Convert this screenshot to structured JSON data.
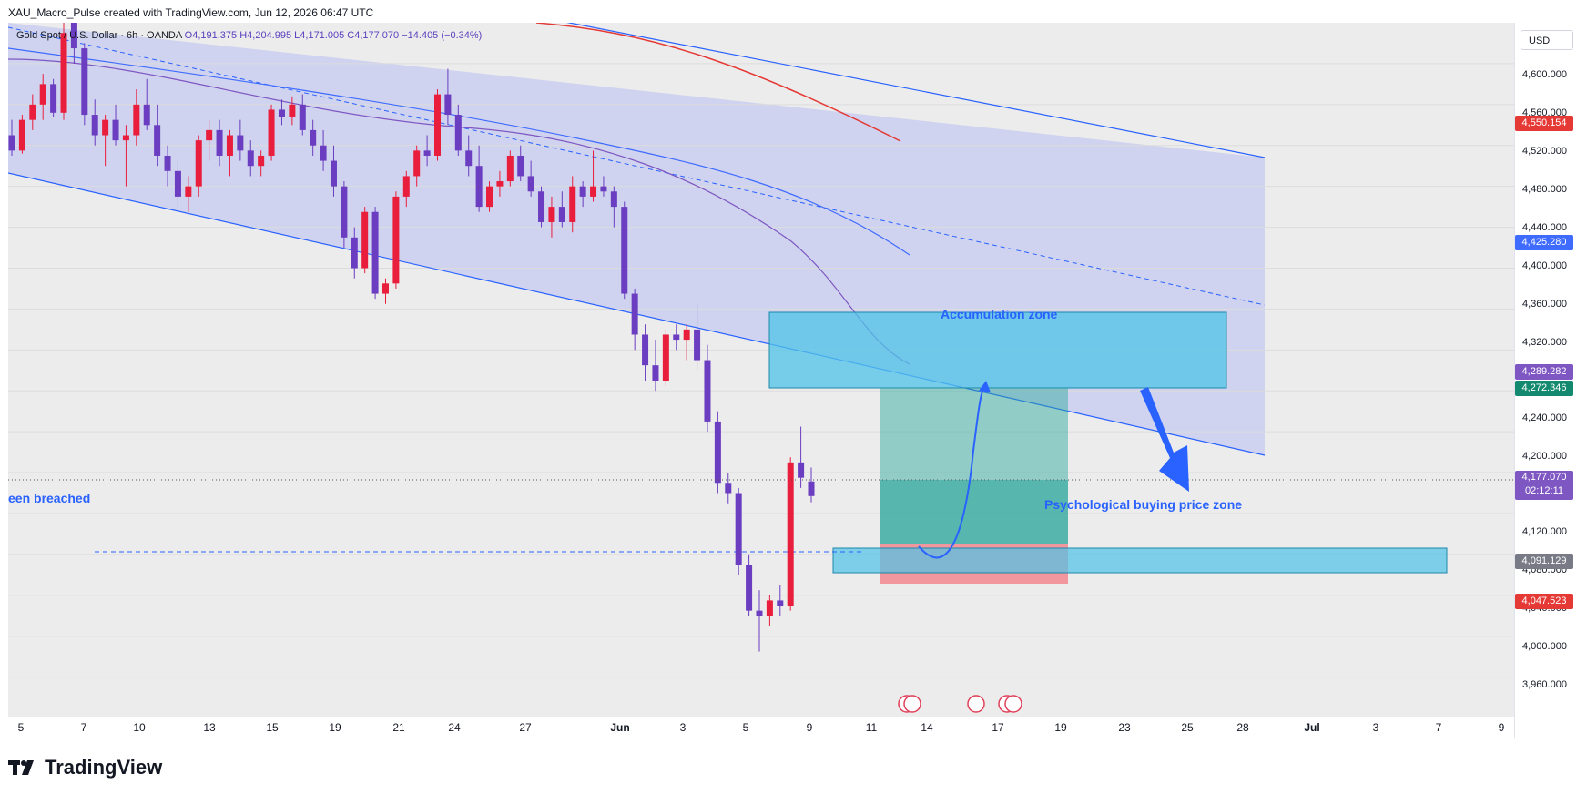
{
  "header": {
    "text": "XAU_Macro_Pulse created with TradingView.com, Jun 12, 2026 06:47 UTC"
  },
  "legend": {
    "symbol": "Gold Spot / U.S. Dollar · 6h · OANDA",
    "open": "O4,191.375",
    "high": "H4,204.995",
    "low": "L4,171.005",
    "close": "C4,177.070",
    "change": "−14.405 (−0.34%)"
  },
  "axis": {
    "currency": "USD",
    "price_ticks": [
      "4,600.000",
      "4,560.000",
      "4,520.000",
      "4,480.000",
      "4,440.000",
      "4,400.000",
      "4,360.000",
      "4,320.000",
      "4,240.000",
      "4,200.000",
      "4,120.000",
      "4,080.000",
      "4,040.000",
      "4,000.000",
      "3,960.000"
    ],
    "time_ticks": [
      "5",
      "7",
      "10",
      "13",
      "15",
      "19",
      "21",
      "24",
      "27",
      "Jun",
      "3",
      "5",
      "9",
      "11",
      "14",
      "17",
      "19",
      "23",
      "25",
      "28",
      "Jul",
      "3",
      "7",
      "9"
    ]
  },
  "badges": {
    "ma_red": "4,550.154",
    "ma_blue": "4,425.280",
    "ma_purple": "4,289.282",
    "zone_top": "4,272.346",
    "last_price": "4,177.070",
    "countdown": "02:12:11",
    "zone_mid": "4,091.129",
    "stop": "4,047.523"
  },
  "annotations": {
    "accumulation": "Accumulation zone",
    "psychological": "Psychological buying price zone",
    "breached": "een breached"
  },
  "logo": {
    "text": "TradingView",
    "icon": "tradingview-logo-icon"
  },
  "colors": {
    "bull": "#e91e3c",
    "bear": "#6a3dc1",
    "channel": "#2962ff",
    "channel_fill": "#c5cbf0",
    "zone": "#4fc3e8",
    "target": "#26a69a",
    "stop": "#f7525f",
    "ma_red": "#e53935",
    "ma_blue": "#3f6bff",
    "ma_purple": "#7e57c2"
  },
  "chart_data": {
    "type": "candlestick",
    "symbol": "XAUUSD",
    "timeframe": "6h",
    "ylim": [
      3940,
      4640
    ],
    "candles": [
      {
        "o": 4530,
        "h": 4545,
        "l": 4510,
        "c": 4515
      },
      {
        "o": 4515,
        "h": 4550,
        "l": 4512,
        "c": 4545
      },
      {
        "o": 4545,
        "h": 4570,
        "l": 4535,
        "c": 4560
      },
      {
        "o": 4560,
        "h": 4590,
        "l": 4545,
        "c": 4580
      },
      {
        "o": 4580,
        "h": 4585,
        "l": 4548,
        "c": 4552
      },
      {
        "o": 4552,
        "h": 4640,
        "l": 4545,
        "c": 4630
      },
      {
        "o": 4640,
        "h": 4660,
        "l": 4600,
        "c": 4615
      },
      {
        "o": 4615,
        "h": 4620,
        "l": 4540,
        "c": 4550
      },
      {
        "o": 4550,
        "h": 4565,
        "l": 4520,
        "c": 4530
      },
      {
        "o": 4530,
        "h": 4550,
        "l": 4500,
        "c": 4545
      },
      {
        "o": 4545,
        "h": 4560,
        "l": 4520,
        "c": 4525
      },
      {
        "o": 4525,
        "h": 4540,
        "l": 4480,
        "c": 4530
      },
      {
        "o": 4530,
        "h": 4575,
        "l": 4520,
        "c": 4560
      },
      {
        "o": 4560,
        "h": 4585,
        "l": 4535,
        "c": 4540
      },
      {
        "o": 4540,
        "h": 4560,
        "l": 4500,
        "c": 4510
      },
      {
        "o": 4510,
        "h": 4520,
        "l": 4480,
        "c": 4495
      },
      {
        "o": 4495,
        "h": 4505,
        "l": 4460,
        "c": 4470
      },
      {
        "o": 4470,
        "h": 4490,
        "l": 4455,
        "c": 4480
      },
      {
        "o": 4480,
        "h": 4530,
        "l": 4470,
        "c": 4525
      },
      {
        "o": 4525,
        "h": 4545,
        "l": 4505,
        "c": 4535
      },
      {
        "o": 4535,
        "h": 4545,
        "l": 4500,
        "c": 4510
      },
      {
        "o": 4510,
        "h": 4535,
        "l": 4490,
        "c": 4530
      },
      {
        "o": 4530,
        "h": 4545,
        "l": 4505,
        "c": 4515
      },
      {
        "o": 4515,
        "h": 4525,
        "l": 4490,
        "c": 4500
      },
      {
        "o": 4500,
        "h": 4515,
        "l": 4490,
        "c": 4510
      },
      {
        "o": 4510,
        "h": 4560,
        "l": 4505,
        "c": 4555
      },
      {
        "o": 4555,
        "h": 4565,
        "l": 4540,
        "c": 4548
      },
      {
        "o": 4548,
        "h": 4568,
        "l": 4540,
        "c": 4560
      },
      {
        "o": 4560,
        "h": 4570,
        "l": 4530,
        "c": 4535
      },
      {
        "o": 4535,
        "h": 4545,
        "l": 4510,
        "c": 4520
      },
      {
        "o": 4520,
        "h": 4535,
        "l": 4495,
        "c": 4505
      },
      {
        "o": 4505,
        "h": 4520,
        "l": 4470,
        "c": 4480
      },
      {
        "o": 4480,
        "h": 4485,
        "l": 4420,
        "c": 4430
      },
      {
        "o": 4430,
        "h": 4440,
        "l": 4390,
        "c": 4400
      },
      {
        "o": 4400,
        "h": 4460,
        "l": 4395,
        "c": 4455
      },
      {
        "o": 4455,
        "h": 4460,
        "l": 4370,
        "c": 4375
      },
      {
        "o": 4375,
        "h": 4390,
        "l": 4365,
        "c": 4385
      },
      {
        "o": 4385,
        "h": 4475,
        "l": 4380,
        "c": 4470
      },
      {
        "o": 4470,
        "h": 4495,
        "l": 4460,
        "c": 4490
      },
      {
        "o": 4490,
        "h": 4520,
        "l": 4480,
        "c": 4515
      },
      {
        "o": 4515,
        "h": 4530,
        "l": 4500,
        "c": 4510
      },
      {
        "o": 4510,
        "h": 4575,
        "l": 4505,
        "c": 4570
      },
      {
        "o": 4570,
        "h": 4595,
        "l": 4540,
        "c": 4550
      },
      {
        "o": 4550,
        "h": 4560,
        "l": 4510,
        "c": 4515
      },
      {
        "o": 4515,
        "h": 4530,
        "l": 4490,
        "c": 4500
      },
      {
        "o": 4500,
        "h": 4520,
        "l": 4455,
        "c": 4460
      },
      {
        "o": 4460,
        "h": 4485,
        "l": 4455,
        "c": 4480
      },
      {
        "o": 4480,
        "h": 4495,
        "l": 4470,
        "c": 4485
      },
      {
        "o": 4485,
        "h": 4515,
        "l": 4480,
        "c": 4510
      },
      {
        "o": 4510,
        "h": 4520,
        "l": 4485,
        "c": 4490
      },
      {
        "o": 4490,
        "h": 4505,
        "l": 4470,
        "c": 4475
      },
      {
        "o": 4475,
        "h": 4480,
        "l": 4440,
        "c": 4445
      },
      {
        "o": 4445,
        "h": 4470,
        "l": 4430,
        "c": 4460
      },
      {
        "o": 4460,
        "h": 4475,
        "l": 4440,
        "c": 4445
      },
      {
        "o": 4445,
        "h": 4490,
        "l": 4435,
        "c": 4480
      },
      {
        "o": 4480,
        "h": 4485,
        "l": 4460,
        "c": 4470
      },
      {
        "o": 4470,
        "h": 4515,
        "l": 4465,
        "c": 4480
      },
      {
        "o": 4480,
        "h": 4490,
        "l": 4470,
        "c": 4475
      },
      {
        "o": 4475,
        "h": 4480,
        "l": 4440,
        "c": 4460
      },
      {
        "o": 4460,
        "h": 4465,
        "l": 4370,
        "c": 4375
      },
      {
        "o": 4375,
        "h": 4380,
        "l": 4320,
        "c": 4335
      },
      {
        "o": 4335,
        "h": 4345,
        "l": 4290,
        "c": 4305
      },
      {
        "o": 4305,
        "h": 4330,
        "l": 4280,
        "c": 4290
      },
      {
        "o": 4290,
        "h": 4340,
        "l": 4285,
        "c": 4335
      },
      {
        "o": 4335,
        "h": 4345,
        "l": 4320,
        "c": 4330
      },
      {
        "o": 4330,
        "h": 4345,
        "l": 4310,
        "c": 4340
      },
      {
        "o": 4340,
        "h": 4365,
        "l": 4300,
        "c": 4310
      },
      {
        "o": 4310,
        "h": 4325,
        "l": 4240,
        "c": 4250
      },
      {
        "o": 4250,
        "h": 4260,
        "l": 4180,
        "c": 4190
      },
      {
        "o": 4190,
        "h": 4200,
        "l": 4170,
        "c": 4180
      },
      {
        "o": 4180,
        "h": 4185,
        "l": 4100,
        "c": 4110
      },
      {
        "o": 4110,
        "h": 4120,
        "l": 4060,
        "c": 4065
      },
      {
        "o": 4065,
        "h": 4085,
        "l": 4025,
        "c": 4060
      },
      {
        "o": 4060,
        "h": 4080,
        "l": 4050,
        "c": 4075
      },
      {
        "o": 4075,
        "h": 4090,
        "l": 4060,
        "c": 4070
      },
      {
        "o": 4070,
        "h": 4215,
        "l": 4065,
        "c": 4210
      },
      {
        "o": 4210,
        "h": 4245,
        "l": 4185,
        "c": 4195
      },
      {
        "o": 4191.375,
        "h": 4204.995,
        "l": 4171.005,
        "c": 4177.07
      }
    ],
    "levels": {
      "ma_200": 4550.154,
      "ma_100": 4425.28,
      "ma_50": 4289.282,
      "accumulation_zone": [
        4272.346,
        4352
      ],
      "psychological_zone": [
        4078,
        4103
      ],
      "long_entry": 4091.129,
      "long_target": 4272.346,
      "long_stop": 4047.523,
      "last_price": 4177.07
    }
  }
}
